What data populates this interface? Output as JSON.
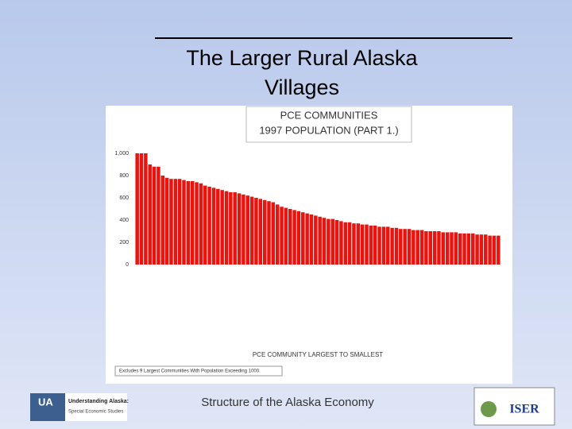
{
  "slide": {
    "title": "The Larger Rural Alaska Villages",
    "footer": "Structure of the Alaska Economy",
    "left_logo": {
      "mark": "UA",
      "title": "Understanding Alaska:",
      "subtitle": "Special Economic Studies"
    },
    "right_logo": {
      "mark": "ISER"
    }
  },
  "chart_data": {
    "type": "bar",
    "title": "PCE COMMUNITIES",
    "subtitle": "1997 POPULATION (PART 1.)",
    "x_label": "PCE COMMUNITY LARGEST TO SMALLEST",
    "note": "Excludes 9 Largest Communities With Population Exceeding 1000.",
    "color": "#e8140f",
    "categories": [
      null,
      null,
      null,
      null,
      null,
      null,
      null,
      null,
      null,
      null,
      null,
      null,
      null,
      null,
      null,
      null,
      null,
      null,
      null,
      null,
      null,
      null,
      null,
      null,
      null,
      null,
      null,
      null,
      null,
      null,
      null,
      null,
      null,
      null,
      null,
      null,
      null,
      null,
      null,
      null,
      null,
      null,
      null,
      null,
      null,
      null,
      null,
      null,
      null,
      null,
      null,
      null,
      null,
      null,
      null,
      null,
      null,
      null,
      null,
      null,
      null,
      null,
      null,
      null,
      null,
      null,
      null,
      null,
      null,
      null,
      null,
      null,
      null,
      null,
      null,
      null,
      null,
      null,
      null,
      null,
      null,
      null,
      null,
      null,
      null,
      null
    ],
    "values": [
      1000,
      1000,
      1000,
      900,
      880,
      880,
      800,
      780,
      770,
      770,
      770,
      760,
      750,
      750,
      740,
      730,
      710,
      700,
      690,
      680,
      670,
      660,
      650,
      650,
      640,
      630,
      620,
      610,
      600,
      590,
      580,
      570,
      560,
      540,
      520,
      510,
      500,
      490,
      480,
      470,
      460,
      450,
      440,
      430,
      420,
      410,
      410,
      400,
      390,
      380,
      380,
      370,
      370,
      360,
      360,
      350,
      350,
      340,
      340,
      340,
      330,
      330,
      320,
      320,
      320,
      310,
      310,
      310,
      300,
      300,
      300,
      300,
      290,
      290,
      290,
      290,
      280,
      280,
      280,
      280,
      270,
      270,
      270,
      260,
      260,
      260
    ],
    "ylim": [
      0,
      1000
    ],
    "yticks": [
      0,
      200,
      400,
      600,
      800,
      {
        "value": 1000,
        "label": "1,000"
      }
    ],
    "grid": false
  }
}
